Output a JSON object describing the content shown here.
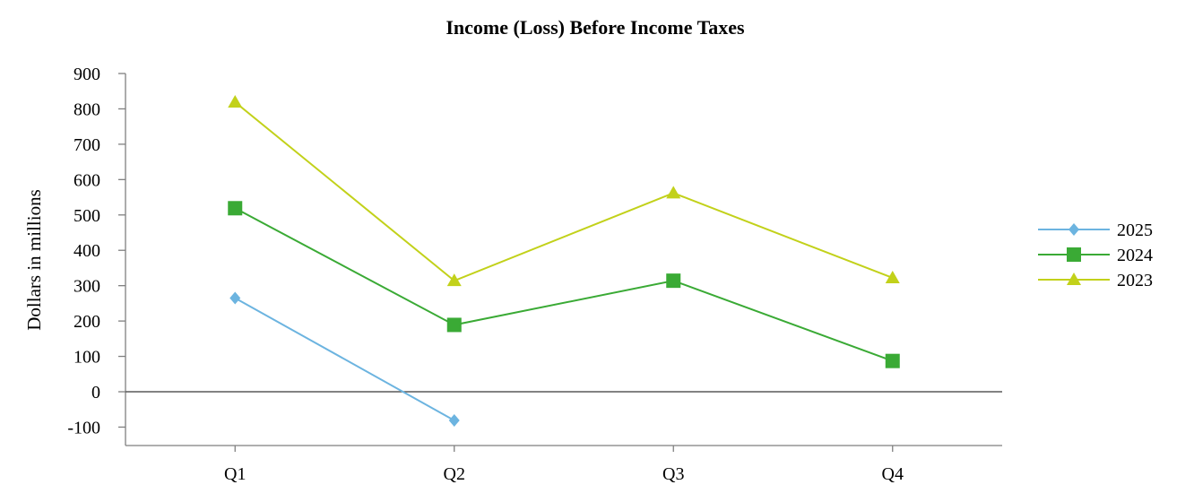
{
  "chart_data": {
    "type": "line",
    "title": "Income (Loss) Before Income Taxes",
    "xlabel": "",
    "ylabel": "Dollars in millions",
    "categories": [
      "Q1",
      "Q2",
      "Q3",
      "Q4"
    ],
    "ylim": [
      -100,
      900
    ],
    "yticks": [
      -100,
      0,
      100,
      200,
      300,
      400,
      500,
      600,
      700,
      800,
      900
    ],
    "grid": false,
    "legend_position": "right",
    "series": [
      {
        "name": "2025",
        "values": [
          265,
          -81,
          null,
          null
        ],
        "color": "#6cb4e0",
        "marker": "diamond"
      },
      {
        "name": "2024",
        "values": [
          519,
          189,
          314,
          87
        ],
        "color": "#3aaa35",
        "marker": "square"
      },
      {
        "name": "2023",
        "values": [
          819,
          314,
          562,
          322
        ],
        "color": "#c2d11a",
        "marker": "triangle"
      }
    ]
  }
}
